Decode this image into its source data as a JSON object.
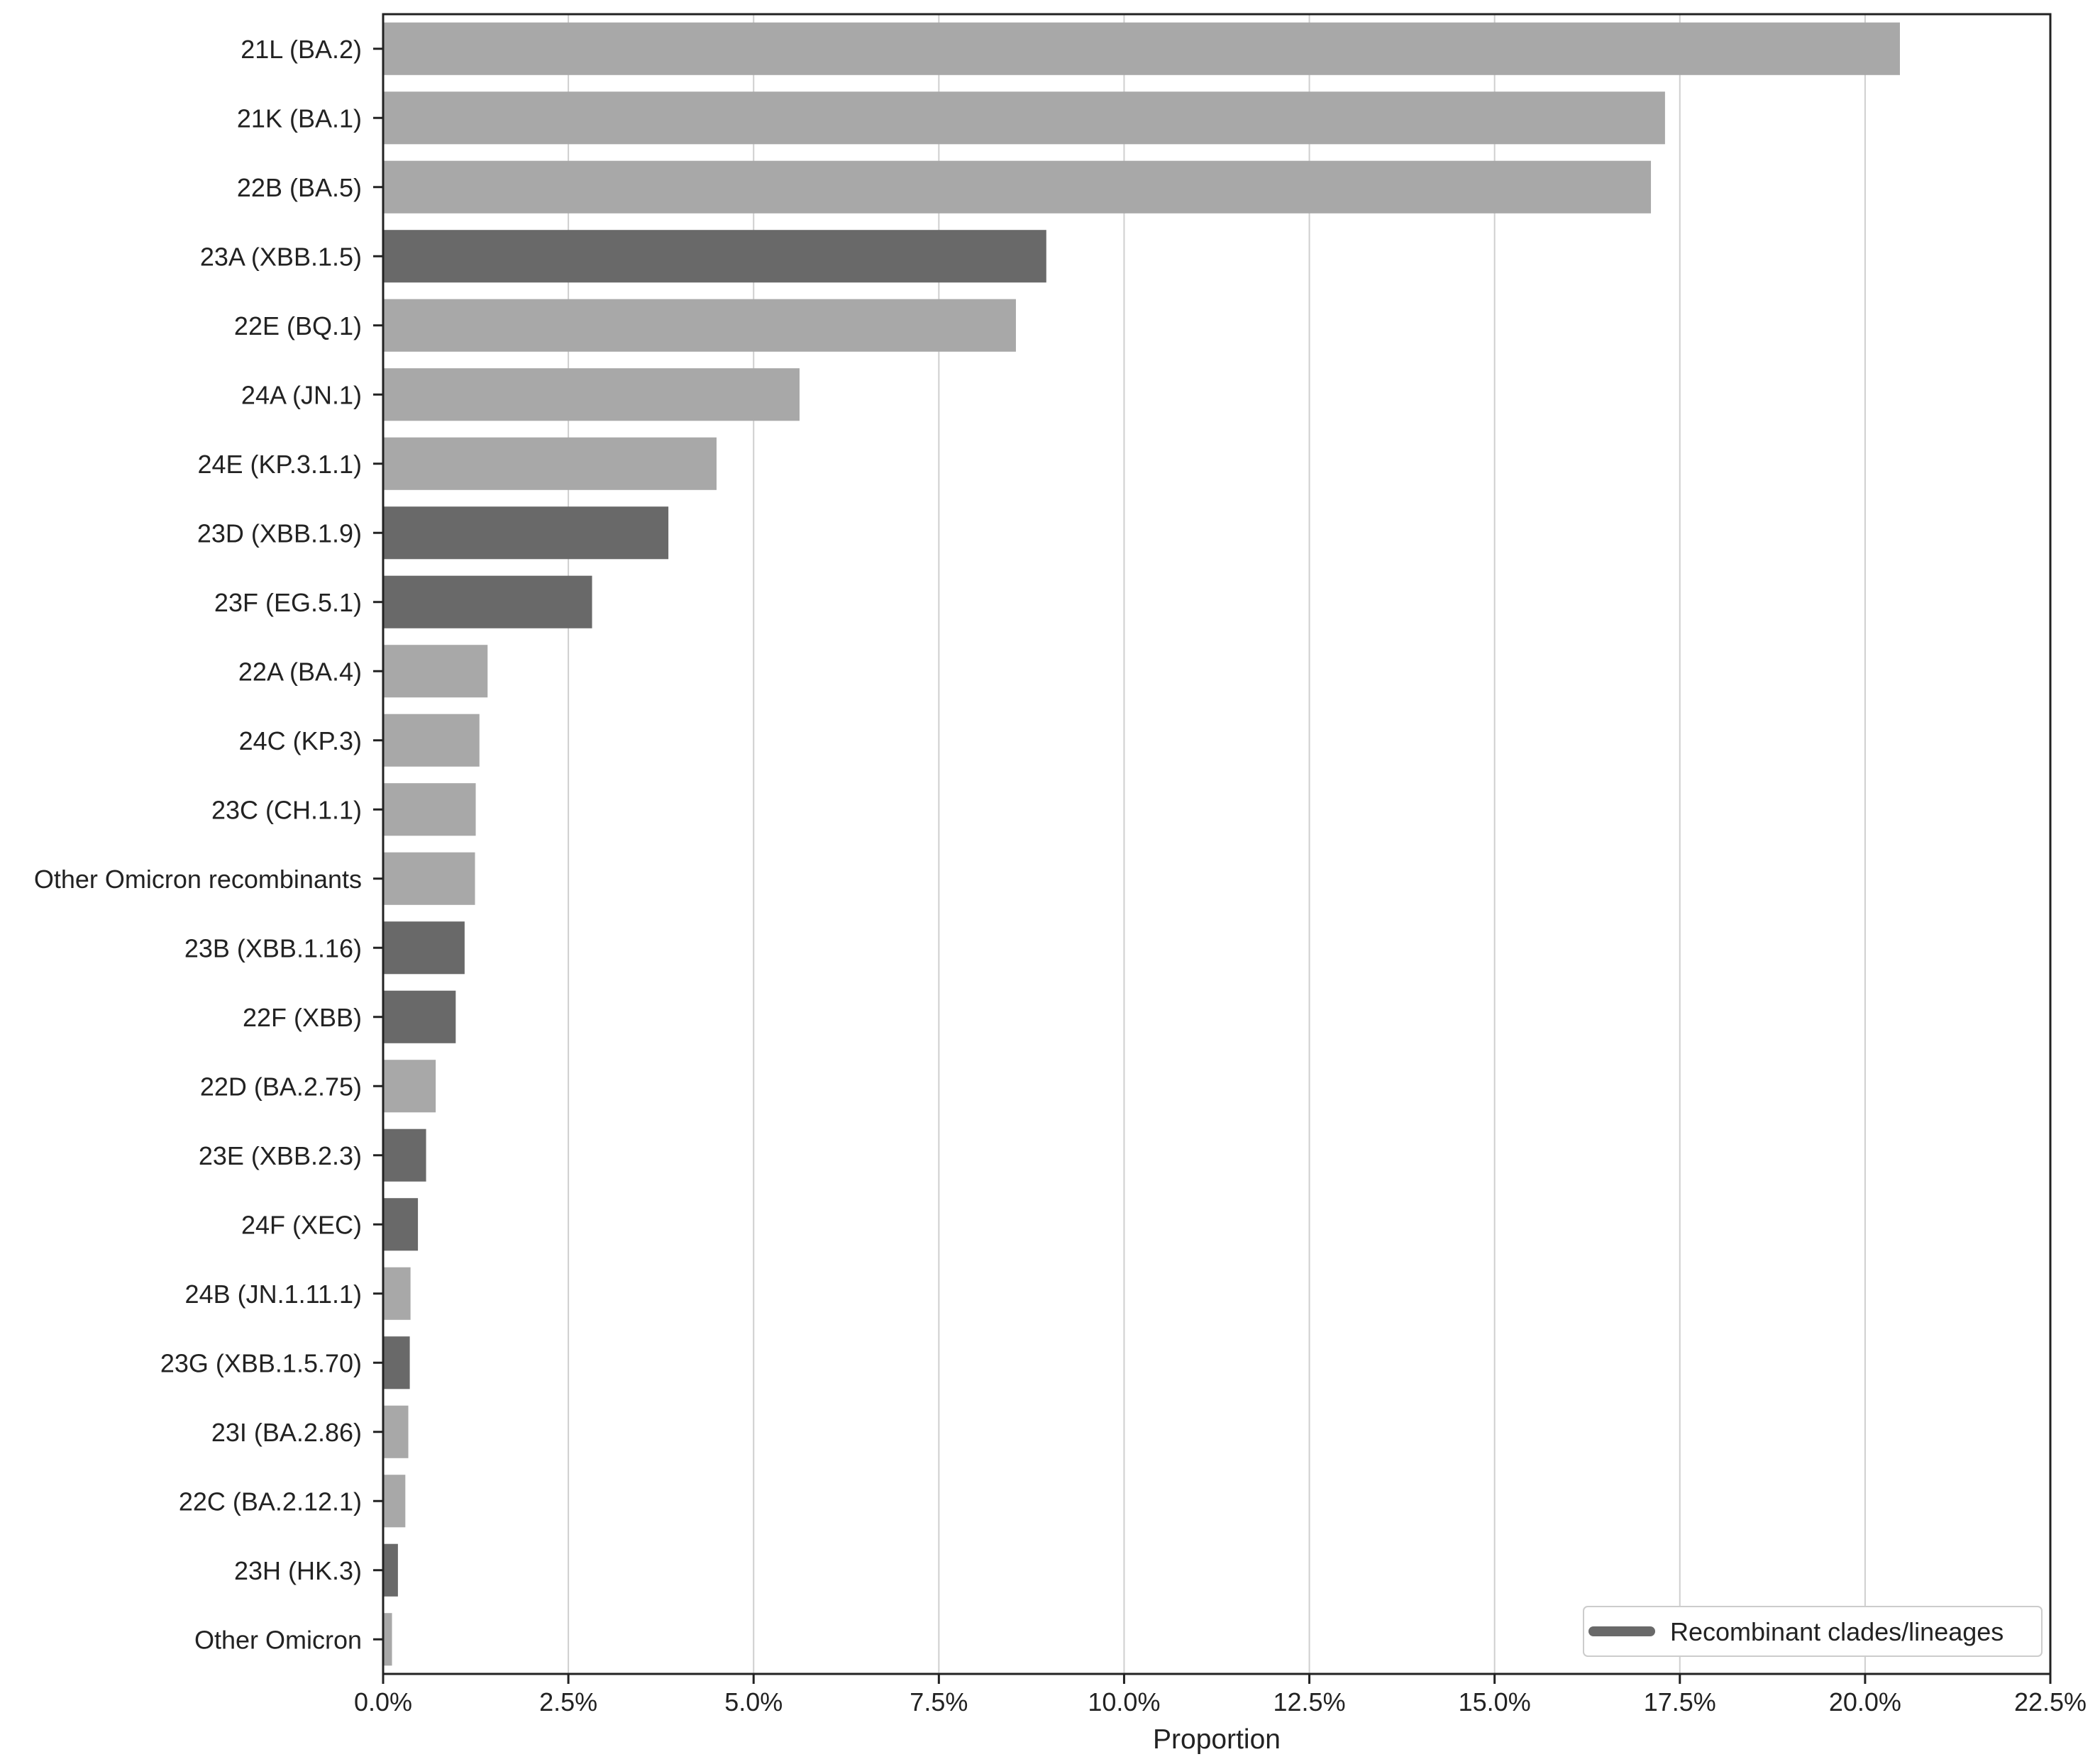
{
  "chart_data": {
    "type": "bar",
    "orientation": "horizontal",
    "xlabel": "Proportion",
    "ylabel": "",
    "title": "",
    "xlim": [
      0,
      22.5
    ],
    "x_ticks": [
      0,
      2.5,
      5,
      7.5,
      10,
      12.5,
      15,
      17.5,
      20,
      22.5
    ],
    "x_tick_labels": [
      "0.0%",
      "2.5%",
      "5.0%",
      "7.5%",
      "10.0%",
      "12.5%",
      "15.0%",
      "17.5%",
      "20.0%",
      "22.5%"
    ],
    "grid": "vertical",
    "legend": {
      "position": "bottom-right",
      "entries": [
        {
          "label": "Recombinant clades/lineages",
          "color": "#696969"
        }
      ]
    },
    "colors": {
      "standard": "#a8a8a8",
      "recombinant": "#696969"
    },
    "categories": [
      "21L (BA.2)",
      "21K (BA.1)",
      "22B (BA.5)",
      "23A (XBB.1.5)",
      "22E (BQ.1)",
      "24A (JN.1)",
      "24E (KP.3.1.1)",
      "23D (XBB.1.9)",
      "23F (EG.5.1)",
      "22A (BA.4)",
      "24C (KP.3)",
      "23C (CH.1.1)",
      "Other Omicron recombinants",
      "23B (XBB.1.16)",
      "22F (XBB)",
      "22D (BA.2.75)",
      "23E (XBB.2.3)",
      "24F (XEC)",
      "24B (JN.1.11.1)",
      "23G (XBB.1.5.70)",
      "23I (BA.2.86)",
      "22C (BA.2.12.1)",
      "23H (HK.3)",
      "Other Omicron"
    ],
    "values": [
      20.47,
      17.3,
      17.11,
      8.95,
      8.54,
      5.62,
      4.5,
      3.85,
      2.82,
      1.41,
      1.3,
      1.25,
      1.24,
      1.1,
      0.98,
      0.71,
      0.58,
      0.47,
      0.37,
      0.36,
      0.34,
      0.3,
      0.2,
      0.12
    ],
    "recombinant": [
      false,
      false,
      false,
      true,
      false,
      false,
      false,
      true,
      true,
      false,
      false,
      false,
      false,
      true,
      true,
      false,
      true,
      true,
      false,
      true,
      false,
      false,
      true,
      false
    ]
  }
}
